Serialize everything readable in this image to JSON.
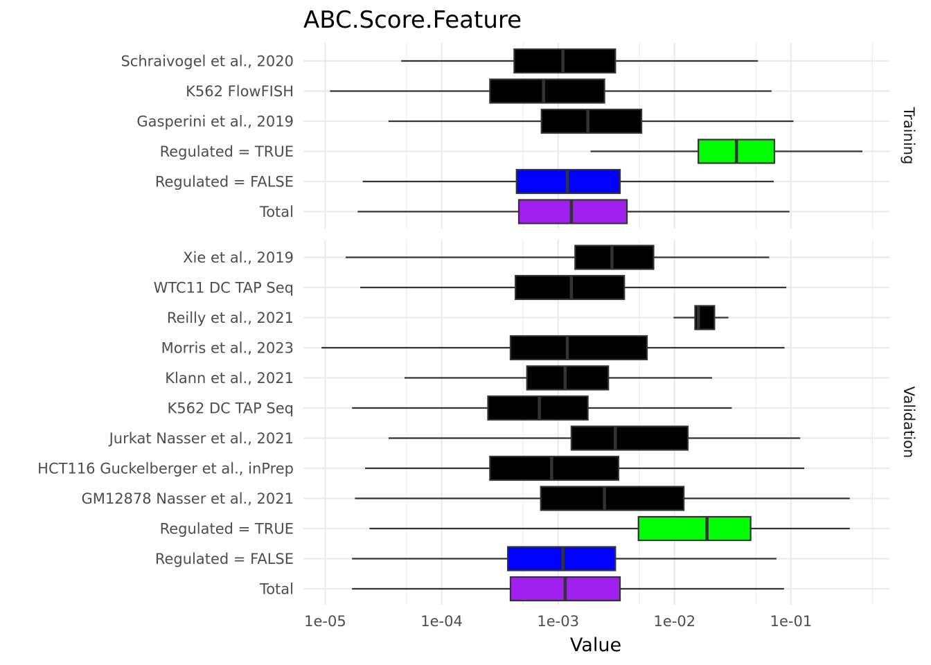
{
  "chart_data": {
    "type": "boxplot",
    "title": "ABC.Score.Feature",
    "xlabel": "Value",
    "ylabel": "",
    "x_scale": "log10",
    "xlim": [
      6.5e-06,
      0.7
    ],
    "x_ticks": [
      1e-05,
      0.0001,
      0.001,
      0.01,
      0.1
    ],
    "x_tick_labels": [
      "1e-05",
      "1e-04",
      "1e-03",
      "1e-02",
      "1e-01"
    ],
    "grid": true,
    "colors": {
      "black": "#000000",
      "green": "#00ff00",
      "blue": "#0000ff",
      "purple": "#a020f0",
      "outline": "#333333"
    },
    "panels": [
      {
        "strip": "Training",
        "rows": [
          {
            "label": "Schraivogel et al., 2020",
            "min": 4.5e-05,
            "q1": 0.00042,
            "median": 0.0011,
            "q3": 0.0031,
            "max": 0.052,
            "color": "#000000"
          },
          {
            "label": "K562 FlowFISH",
            "min": 1.1e-05,
            "q1": 0.00026,
            "median": 0.00075,
            "q3": 0.0025,
            "max": 0.068,
            "color": "#000000"
          },
          {
            "label": "Gasperini et al., 2019",
            "min": 3.5e-05,
            "q1": 0.00072,
            "median": 0.0018,
            "q3": 0.0052,
            "max": 0.105,
            "color": "#000000"
          },
          {
            "label": "Regulated = TRUE",
            "min": 0.0019,
            "q1": 0.016,
            "median": 0.034,
            "q3": 0.072,
            "max": 0.41,
            "color": "#00ff00"
          },
          {
            "label": "Regulated = FALSE",
            "min": 2.1e-05,
            "q1": 0.00044,
            "median": 0.0012,
            "q3": 0.0034,
            "max": 0.071,
            "color": "#0000ff"
          },
          {
            "label": "Total",
            "min": 1.9e-05,
            "q1": 0.00046,
            "median": 0.0013,
            "q3": 0.0039,
            "max": 0.097,
            "color": "#a020f0"
          }
        ]
      },
      {
        "strip": "Validation",
        "rows": [
          {
            "label": "Xie et al., 2019",
            "min": 1.5e-05,
            "q1": 0.0014,
            "median": 0.0029,
            "q3": 0.0066,
            "max": 0.065,
            "color": "#000000"
          },
          {
            "label": "WTC11 DC TAP Seq",
            "min": 2e-05,
            "q1": 0.00043,
            "median": 0.0013,
            "q3": 0.0037,
            "max": 0.091,
            "color": "#000000"
          },
          {
            "label": "Reilly et al., 2021",
            "min": 0.0098,
            "q1": 0.015,
            "median": 0.016,
            "q3": 0.022,
            "max": 0.029,
            "color": "#000000"
          },
          {
            "label": "Morris et al., 2023",
            "min": 9.3e-06,
            "q1": 0.00039,
            "median": 0.0012,
            "q3": 0.0058,
            "max": 0.088,
            "color": "#000000"
          },
          {
            "label": "Klann et al., 2021",
            "min": 4.8e-05,
            "q1": 0.00054,
            "median": 0.00115,
            "q3": 0.0027,
            "max": 0.021,
            "color": "#000000"
          },
          {
            "label": "K562 DC TAP Seq",
            "min": 1.7e-05,
            "q1": 0.00025,
            "median": 0.00069,
            "q3": 0.0018,
            "max": 0.031,
            "color": "#000000"
          },
          {
            "label": "Jurkat Nasser et al., 2021",
            "min": 3.5e-05,
            "q1": 0.0013,
            "median": 0.0031,
            "q3": 0.013,
            "max": 0.12,
            "color": "#000000"
          },
          {
            "label": "HCT116 Guckelberger et al., inPrep",
            "min": 2.2e-05,
            "q1": 0.00026,
            "median": 0.00088,
            "q3": 0.0033,
            "max": 0.13,
            "color": "#000000"
          },
          {
            "label": "GM12878 Nasser et al., 2021",
            "min": 1.8e-05,
            "q1": 0.00071,
            "median": 0.0025,
            "q3": 0.012,
            "max": 0.32,
            "color": "#000000"
          },
          {
            "label": "Regulated = TRUE",
            "min": 2.4e-05,
            "q1": 0.0049,
            "median": 0.019,
            "q3": 0.045,
            "max": 0.32,
            "color": "#00ff00"
          },
          {
            "label": "Regulated = FALSE",
            "min": 1.7e-05,
            "q1": 0.00037,
            "median": 0.0011,
            "q3": 0.0031,
            "max": 0.075,
            "color": "#0000ff"
          },
          {
            "label": "Total",
            "min": 1.7e-05,
            "q1": 0.00039,
            "median": 0.00115,
            "q3": 0.0034,
            "max": 0.087,
            "color": "#a020f0"
          }
        ]
      }
    ]
  }
}
